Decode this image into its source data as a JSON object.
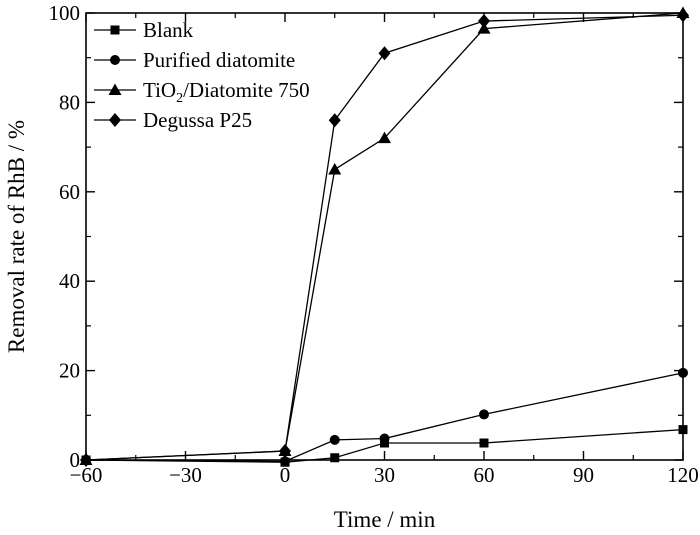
{
  "chart_data": {
    "type": "line",
    "xlabel": "Time / min",
    "ylabel": "Removal rate of RhB / %",
    "xlim": [
      -60,
      120
    ],
    "ylim": [
      0,
      100
    ],
    "xticks": [
      "-60",
      "-30",
      "0",
      "30",
      "60",
      "90",
      "120"
    ],
    "yticks": [
      "0",
      "20",
      "40",
      "60",
      "80",
      "100"
    ],
    "xticks_values": [
      -60,
      -30,
      0,
      30,
      60,
      90,
      120
    ],
    "yticks_values": [
      0,
      20,
      40,
      60,
      80,
      100
    ],
    "grid": false,
    "legend": "top-left",
    "series": [
      {
        "name": "Blank",
        "marker": "square",
        "x": [
          -60,
          0,
          15,
          30,
          60,
          120
        ],
        "y": [
          0,
          -0.5,
          0.5,
          3.8,
          3.8,
          6.8
        ]
      },
      {
        "name": "Purified diatomite",
        "marker": "circle",
        "x": [
          -60,
          0,
          15,
          30,
          60,
          120
        ],
        "y": [
          0,
          -0.3,
          4.5,
          4.8,
          10.2,
          19.5
        ]
      },
      {
        "name": "TiO2/Diatomite 750",
        "legend_parts": [
          "TiO",
          "2",
          "/Diatomite 750"
        ],
        "marker": "triangle",
        "x": [
          -60,
          0,
          15,
          30,
          60,
          120
        ],
        "y": [
          0,
          2,
          65,
          72,
          96.5,
          100
        ]
      },
      {
        "name": "Degussa P25",
        "marker": "diamond",
        "x": [
          -60,
          0,
          15,
          30,
          60,
          120
        ],
        "y": [
          0,
          2,
          76,
          91,
          98.2,
          99.5
        ]
      }
    ]
  }
}
